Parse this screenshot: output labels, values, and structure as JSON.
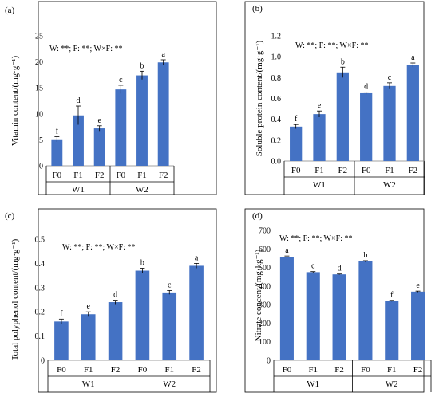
{
  "bar_color": "#4472C4",
  "chart_data": [
    {
      "type": "bar",
      "panel_label": "(a)",
      "ylabel": "Vitamin content/(mg·g⁻¹)",
      "annotation": "W: **; F: **; W×F: **",
      "categories": [
        "F0",
        "F1",
        "F2",
        "F0",
        "F1",
        "F2"
      ],
      "groups": [
        {
          "name": "W1",
          "count": 3
        },
        {
          "name": "W2",
          "count": 3
        }
      ],
      "values": [
        5.1,
        9.7,
        7.2,
        14.7,
        17.4,
        19.9
      ],
      "errors": [
        0.5,
        1.8,
        0.5,
        0.8,
        0.8,
        0.5
      ],
      "letters": [
        "f",
        "d",
        "e",
        "c",
        "b",
        "a"
      ],
      "ylim": [
        0,
        25
      ],
      "yticks": [
        0,
        5,
        10,
        15,
        20,
        25
      ],
      "ytick_labels": [
        "0",
        "5",
        "10",
        "15",
        "20",
        "25"
      ]
    },
    {
      "type": "bar",
      "panel_label": "(b)",
      "ylabel": "Soluble protein content/(mg·g⁻¹)",
      "annotation": "W: **; F: **; W×F: **",
      "categories": [
        "F0",
        "F1",
        "F2",
        "F0",
        "F1",
        "F2"
      ],
      "groups": [
        {
          "name": "W1",
          "count": 3
        },
        {
          "name": "W2",
          "count": 3
        }
      ],
      "values": [
        0.33,
        0.45,
        0.85,
        0.65,
        0.72,
        0.92
      ],
      "errors": [
        0.02,
        0.03,
        0.05,
        0.01,
        0.03,
        0.02
      ],
      "letters": [
        "f",
        "e",
        "b",
        "d",
        "c",
        "a"
      ],
      "ylim": [
        0,
        1.2
      ],
      "yticks": [
        0,
        0.2,
        0.4,
        0.6,
        0.8,
        1.0,
        1.2
      ],
      "ytick_labels": [
        "0.0",
        "0.2",
        "0.4",
        "0.6",
        "0.8",
        "1.0",
        "1.2"
      ]
    },
    {
      "type": "bar",
      "panel_label": "(c)",
      "ylabel": "Total polyphenol content/(mg·g⁻¹)",
      "annotation": "W: **; F: **; W×F: **",
      "categories": [
        "F0",
        "F1",
        "F2",
        "F0",
        "F1",
        "F2"
      ],
      "groups": [
        {
          "name": "W1",
          "count": 3
        },
        {
          "name": "W2",
          "count": 3
        }
      ],
      "values": [
        0.16,
        0.19,
        0.24,
        0.37,
        0.28,
        0.39
      ],
      "errors": [
        0.01,
        0.01,
        0.008,
        0.01,
        0.008,
        0.01
      ],
      "letters": [
        "f",
        "e",
        "d",
        "b",
        "c",
        "a"
      ],
      "ylim": [
        0,
        0.5
      ],
      "yticks": [
        0,
        0.1,
        0.2,
        0.3,
        0.4,
        0.5
      ],
      "ytick_labels": [
        "0",
        "0.1",
        "0.2",
        "0.3",
        "0.4",
        "0.5"
      ]
    },
    {
      "type": "bar",
      "panel_label": "(d)",
      "ylabel": "Nitrate concent/(mg·kg⁻¹)",
      "annotation": "W: **; F: **; W×F: **",
      "categories": [
        "F0",
        "F1",
        "F2",
        "F0",
        "F1",
        "F2"
      ],
      "groups": [
        {
          "name": "W1",
          "count": 3
        },
        {
          "name": "W2",
          "count": 3
        }
      ],
      "values": [
        558,
        475,
        463,
        533,
        320,
        370
      ],
      "errors": [
        4,
        3,
        2,
        4,
        3,
        3
      ],
      "letters": [
        "a",
        "c",
        "d",
        "b",
        "f",
        "e"
      ],
      "ylim": [
        0,
        700
      ],
      "yticks": [
        0,
        100,
        200,
        300,
        400,
        500,
        600,
        700
      ],
      "ytick_labels": [
        "0",
        "100",
        "200",
        "300",
        "400",
        "500",
        "600",
        "700"
      ]
    }
  ]
}
